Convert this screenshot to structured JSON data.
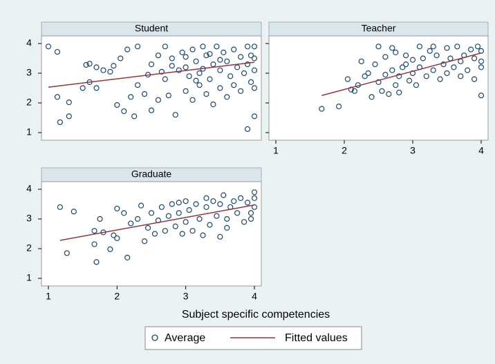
{
  "chart_data": {
    "type": "scatter",
    "xlabel": "Subject specific competencies",
    "legend": [
      {
        "name": "Average",
        "color": "#1a476f"
      },
      {
        "name": "Fitted values",
        "color": "#90353b"
      }
    ],
    "panels": [
      {
        "title": "Student",
        "show_xticklabels": false,
        "show_yticklabels": true,
        "xlim": [
          1,
          4
        ],
        "ylim": [
          1,
          4
        ],
        "xticks": [
          1,
          2,
          3,
          4
        ],
        "yticks": [
          1,
          2,
          3,
          4
        ],
        "x": [
          1,
          1.13,
          1.13,
          1.17,
          1.3,
          1.3,
          1.5,
          1.6,
          1.55,
          1.6,
          1.7,
          1.7,
          1.8,
          1.9,
          1.95,
          2,
          2.05,
          2.1,
          2.15,
          2.2,
          2.25,
          2.3,
          2.3,
          2.4,
          2.5,
          2.5,
          2.6,
          2.6,
          2.7,
          2.7,
          2.75,
          2.8,
          2.85,
          2.9,
          2.95,
          3,
          3,
          3.05,
          3.1,
          3.1,
          3.15,
          3.2,
          3.2,
          3.25,
          3.3,
          3.3,
          3.35,
          3.4,
          3.4,
          3.45,
          3.5,
          3.5,
          3.55,
          3.6,
          3.6,
          3.65,
          3.7,
          3.7,
          3.75,
          3.8,
          3.8,
          3.85,
          3.9,
          3.9,
          3.9,
          3.95,
          4,
          4,
          4,
          4,
          4,
          3.95,
          2.45,
          2.8,
          3.0,
          3.25,
          3.5,
          3.35,
          2.65,
          3.15
        ],
        "values": [
          3.9,
          3.72,
          2.2,
          1.35,
          2.02,
          1.55,
          2.5,
          2.7,
          3.28,
          3.32,
          2.5,
          3.2,
          3.1,
          3.05,
          3.25,
          1.93,
          3.5,
          1.72,
          3.8,
          2.2,
          1.55,
          3.9,
          2.6,
          2.3,
          3.3,
          1.75,
          3.6,
          2.1,
          3.9,
          2.8,
          2.25,
          3.5,
          1.6,
          3.1,
          3.7,
          2.4,
          3.2,
          2.9,
          3.8,
          2.1,
          3.4,
          2.6,
          3.0,
          3.9,
          2.3,
          3.6,
          2.8,
          1.95,
          3.3,
          3.9,
          2.5,
          3.1,
          3.7,
          2.2,
          3.4,
          2.9,
          3.8,
          2.6,
          3.2,
          3.55,
          2.4,
          3.0,
          3.9,
          1.12,
          3.3,
          2.7,
          3.9,
          3.5,
          2.5,
          1.55,
          3.1,
          3.6,
          2.95,
          3.25,
          3.55,
          3.15,
          3.45,
          3.65,
          3.05,
          2.75
        ],
        "fit_x": [
          1,
          4
        ],
        "fit_y": [
          2.53,
          3.37
        ]
      },
      {
        "title": "Teacher",
        "show_xticklabels": true,
        "show_yticklabels": false,
        "xlim": [
          1,
          4
        ],
        "ylim": [
          1,
          4
        ],
        "xticks": [
          1,
          2,
          3,
          4
        ],
        "yticks": [
          1,
          2,
          3,
          4
        ],
        "x": [
          1.67,
          1.92,
          2.05,
          2.1,
          2.15,
          2.2,
          2.25,
          2.3,
          2.35,
          2.4,
          2.45,
          2.5,
          2.5,
          2.55,
          2.6,
          2.65,
          2.7,
          2.75,
          2.7,
          2.75,
          2.8,
          2.8,
          2.85,
          2.9,
          2.95,
          3,
          3,
          3.05,
          3.1,
          3.1,
          3.15,
          3.2,
          3.25,
          3.3,
          3.35,
          3.4,
          3.45,
          3.5,
          3.5,
          3.55,
          3.6,
          3.65,
          3.7,
          3.7,
          3.75,
          3.8,
          3.85,
          3.9,
          3.95,
          4,
          4,
          4,
          4,
          3.9,
          2.6,
          3.3,
          2.9
        ],
        "values": [
          1.8,
          1.88,
          2.8,
          2.45,
          2.4,
          2.6,
          3.4,
          2.9,
          3.0,
          2.2,
          3.3,
          3.9,
          2.7,
          2.4,
          2.95,
          2.3,
          3.1,
          2.6,
          3.85,
          3.7,
          2.9,
          2.35,
          3.2,
          3.3,
          2.75,
          3.0,
          3.45,
          2.6,
          3.9,
          3.2,
          3.5,
          2.9,
          3.75,
          3.1,
          3.6,
          2.8,
          3.3,
          3.85,
          3.0,
          3.5,
          3.2,
          3.9,
          3.4,
          2.9,
          3.6,
          3.1,
          3.8,
          3.5,
          3.9,
          2.25,
          3.2,
          3.75,
          3.4,
          2.8,
          3.55,
          3.9,
          3.6
        ],
        "fit_x": [
          1.67,
          4
        ],
        "fit_y": [
          2.25,
          3.68
        ]
      },
      {
        "title": "Graduate",
        "show_xticklabels": true,
        "show_yticklabels": true,
        "xlim": [
          1,
          4
        ],
        "ylim": [
          1,
          4
        ],
        "xticks": [
          1,
          2,
          3,
          4
        ],
        "yticks": [
          1,
          2,
          3,
          4
        ],
        "x": [
          1.17,
          1.27,
          1.37,
          1.67,
          1.67,
          1.7,
          1.75,
          1.8,
          1.9,
          1.95,
          2.0,
          2.0,
          2.1,
          2.15,
          2.2,
          2.3,
          2.35,
          2.4,
          2.45,
          2.5,
          2.55,
          2.6,
          2.65,
          2.7,
          2.75,
          2.8,
          2.85,
          2.9,
          2.95,
          3,
          3,
          3.05,
          3.1,
          3.15,
          3.2,
          3.25,
          3.3,
          3.35,
          3.4,
          3.45,
          3.5,
          3.5,
          3.55,
          3.6,
          3.65,
          3.7,
          3.75,
          3.8,
          3.85,
          3.9,
          3.95,
          4,
          4,
          4,
          3.95,
          3.6,
          2.9,
          3.3
        ],
        "values": [
          3.4,
          1.85,
          3.25,
          2.15,
          2.6,
          1.55,
          3.0,
          2.55,
          1.98,
          2.45,
          3.35,
          2.35,
          3.2,
          1.7,
          2.85,
          3.0,
          3.45,
          2.25,
          2.7,
          3.2,
          2.5,
          2.95,
          3.4,
          2.6,
          3.1,
          3.5,
          2.75,
          3.2,
          2.5,
          3.6,
          2.9,
          3.3,
          2.6,
          3.5,
          3.0,
          2.45,
          3.4,
          2.8,
          3.6,
          3.1,
          2.4,
          3.5,
          3.8,
          3.0,
          3.4,
          3.6,
          3.2,
          3.7,
          2.9,
          3.55,
          3.2,
          3.9,
          3.4,
          3.7,
          3.0,
          2.7,
          3.55,
          3.7
        ],
        "fit_x": [
          1.17,
          4
        ],
        "fit_y": [
          2.28,
          3.47
        ]
      }
    ]
  }
}
